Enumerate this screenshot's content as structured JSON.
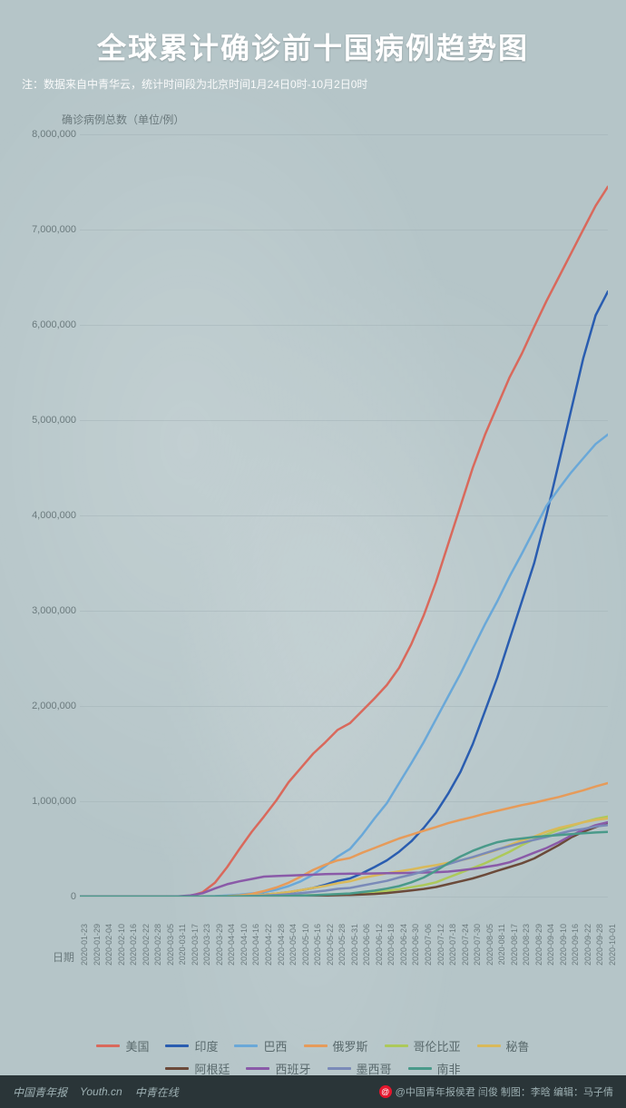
{
  "header": {
    "title": "全球累计确诊前十国病例趋势图",
    "subtitle": "注：数据来自中青华云，统计时间段为北京时间1月24日0时-10月2日0时"
  },
  "chart": {
    "type": "line",
    "y_label": "确诊病例总数（单位/例）",
    "x_label": "日期",
    "ylim": [
      0,
      8000000
    ],
    "ytick_step": 1000000,
    "yticks": [
      0,
      1000000,
      2000000,
      3000000,
      4000000,
      5000000,
      6000000,
      7000000,
      8000000
    ],
    "background_color": "#b5c5c8",
    "grid_color": "#9fb0b3",
    "axis_text_color": "#6b7a7d",
    "label_fontsize": 12,
    "tick_fontsize": 10,
    "line_width": 2.5,
    "dates": [
      "2020-01-23",
      "2020-01-29",
      "2020-02-04",
      "2020-02-10",
      "2020-02-16",
      "2020-02-22",
      "2020-02-28",
      "2020-03-05",
      "2020-03-11",
      "2020-03-17",
      "2020-03-23",
      "2020-03-29",
      "2020-04-04",
      "2020-04-10",
      "2020-04-16",
      "2020-04-22",
      "2020-04-28",
      "2020-05-04",
      "2020-05-10",
      "2020-05-16",
      "2020-05-22",
      "2020-05-28",
      "2020-05-31",
      "2020-06-06",
      "2020-06-12",
      "2020-06-18",
      "2020-06-24",
      "2020-06-30",
      "2020-07-06",
      "2020-07-12",
      "2020-07-18",
      "2020-07-24",
      "2020-07-30",
      "2020-08-05",
      "2020-08-11",
      "2020-08-17",
      "2020-08-23",
      "2020-08-29",
      "2020-09-04",
      "2020-09-10",
      "2020-09-16",
      "2020-09-22",
      "2020-09-28",
      "2020-10-01"
    ],
    "series": [
      {
        "name": "美国",
        "color": "#d9695c",
        "values": [
          0,
          0,
          0,
          0,
          0,
          0,
          0,
          200,
          1200,
          6500,
          45000,
          145000,
          310000,
          500000,
          680000,
          840000,
          1010000,
          1200000,
          1350000,
          1500000,
          1620000,
          1750000,
          1820000,
          1950000,
          2080000,
          2220000,
          2400000,
          2650000,
          2950000,
          3300000,
          3700000,
          4100000,
          4500000,
          4850000,
          5150000,
          5450000,
          5700000,
          5980000,
          6250000,
          6500000,
          6750000,
          7000000,
          7250000,
          7450000
        ]
      },
      {
        "name": "印度",
        "color": "#2a5db0",
        "values": [
          0,
          0,
          0,
          0,
          0,
          0,
          0,
          30,
          60,
          140,
          500,
          1100,
          3500,
          7500,
          13500,
          21500,
          31500,
          46500,
          67000,
          90000,
          125000,
          165000,
          190000,
          245000,
          310000,
          380000,
          470000,
          580000,
          720000,
          880000,
          1080000,
          1310000,
          1600000,
          1950000,
          2300000,
          2700000,
          3100000,
          3500000,
          4000000,
          4550000,
          5100000,
          5650000,
          6100000,
          6350000
        ]
      },
      {
        "name": "巴西",
        "color": "#6aa8d8",
        "values": [
          0,
          0,
          0,
          0,
          0,
          0,
          0,
          0,
          50,
          300,
          1900,
          4500,
          11000,
          20000,
          32000,
          46000,
          72000,
          110000,
          160000,
          230000,
          320000,
          420000,
          500000,
          650000,
          820000,
          980000,
          1190000,
          1400000,
          1620000,
          1860000,
          2100000,
          2340000,
          2600000,
          2860000,
          3100000,
          3360000,
          3600000,
          3850000,
          4100000,
          4280000,
          4450000,
          4600000,
          4750000,
          4850000
        ]
      },
      {
        "name": "俄罗斯",
        "color": "#e69b5a",
        "values": [
          0,
          0,
          0,
          0,
          0,
          0,
          0,
          0,
          20,
          110,
          440,
          1800,
          4700,
          12000,
          28000,
          58000,
          95000,
          145000,
          210000,
          280000,
          335000,
          380000,
          405000,
          460000,
          510000,
          560000,
          610000,
          650000,
          690000,
          730000,
          770000,
          805000,
          835000,
          870000,
          900000,
          930000,
          960000,
          985000,
          1015000,
          1045000,
          1080000,
          1115000,
          1155000,
          1190000
        ]
      },
      {
        "name": "哥伦比亚",
        "color": "#adc95a",
        "values": [
          0,
          0,
          0,
          0,
          0,
          0,
          0,
          0,
          0,
          60,
          280,
          800,
          1500,
          2700,
          3400,
          4400,
          5900,
          8000,
          11000,
          15000,
          19000,
          25000,
          29000,
          40000,
          48000,
          60000,
          77000,
          98000,
          120000,
          150000,
          200000,
          250000,
          300000,
          350000,
          410000,
          470000,
          540000,
          600000,
          650000,
          700000,
          740000,
          780000,
          815000,
          840000
        ]
      },
      {
        "name": "秘鲁",
        "color": "#d9b95a",
        "values": [
          0,
          0,
          0,
          0,
          0,
          0,
          0,
          0,
          0,
          90,
          400,
          1000,
          2000,
          6000,
          13000,
          20000,
          32000,
          48000,
          68000,
          90000,
          112000,
          140000,
          160000,
          195000,
          220000,
          245000,
          265000,
          285000,
          310000,
          330000,
          355000,
          380000,
          410000,
          450000,
          490000,
          540000,
          590000,
          630000,
          680000,
          720000,
          750000,
          780000,
          805000,
          820000
        ]
      },
      {
        "name": "阿根廷",
        "color": "#6b4a3a",
        "values": [
          0,
          0,
          0,
          0,
          0,
          0,
          0,
          0,
          20,
          80,
          300,
          800,
          1500,
          2000,
          2700,
          3400,
          4100,
          5000,
          6300,
          8000,
          11000,
          14000,
          17000,
          22000,
          28000,
          37000,
          50000,
          65000,
          80000,
          100000,
          130000,
          160000,
          190000,
          230000,
          270000,
          310000,
          350000,
          400000,
          470000,
          540000,
          620000,
          680000,
          730000,
          770000
        ]
      },
      {
        "name": "西班牙",
        "color": "#8a5aa8",
        "values": [
          0,
          0,
          0,
          0,
          0,
          0,
          30,
          260,
          2300,
          12000,
          35000,
          85000,
          130000,
          160000,
          185000,
          210000,
          215000,
          220000,
          225000,
          230000,
          235000,
          238000,
          240000,
          241000,
          243000,
          245000,
          247000,
          249000,
          252000,
          255000,
          262000,
          275000,
          290000,
          310000,
          330000,
          360000,
          410000,
          460000,
          510000,
          570000,
          640000,
          700000,
          750000,
          780000
        ]
      },
      {
        "name": "墨西哥",
        "color": "#7a8ab8",
        "values": [
          0,
          0,
          0,
          0,
          0,
          0,
          0,
          0,
          10,
          100,
          400,
          1200,
          2000,
          4000,
          6500,
          10500,
          16500,
          25000,
          36000,
          49000,
          62000,
          81000,
          90000,
          115000,
          140000,
          165000,
          200000,
          230000,
          265000,
          300000,
          340000,
          380000,
          415000,
          455000,
          495000,
          530000,
          565000,
          595000,
          625000,
          660000,
          690000,
          710000,
          735000,
          750000
        ]
      },
      {
        "name": "南非",
        "color": "#4a9a8a",
        "values": [
          0,
          0,
          0,
          0,
          0,
          0,
          0,
          0,
          20,
          90,
          400,
          1300,
          1700,
          2100,
          2800,
          3800,
          5000,
          7500,
          10500,
          14500,
          20000,
          27000,
          32000,
          48000,
          62000,
          84000,
          110000,
          150000,
          200000,
          270000,
          350000,
          420000,
          480000,
          530000,
          570000,
          595000,
          610000,
          625000,
          635000,
          645000,
          655000,
          665000,
          672000,
          678000
        ]
      }
    ]
  },
  "footer": {
    "logos": [
      "中国青年报",
      "Youth.cn",
      "中青在线"
    ],
    "credit_prefix": "@中国青年报侯君 闫俊 制图：李晗 编辑：马子倩"
  }
}
